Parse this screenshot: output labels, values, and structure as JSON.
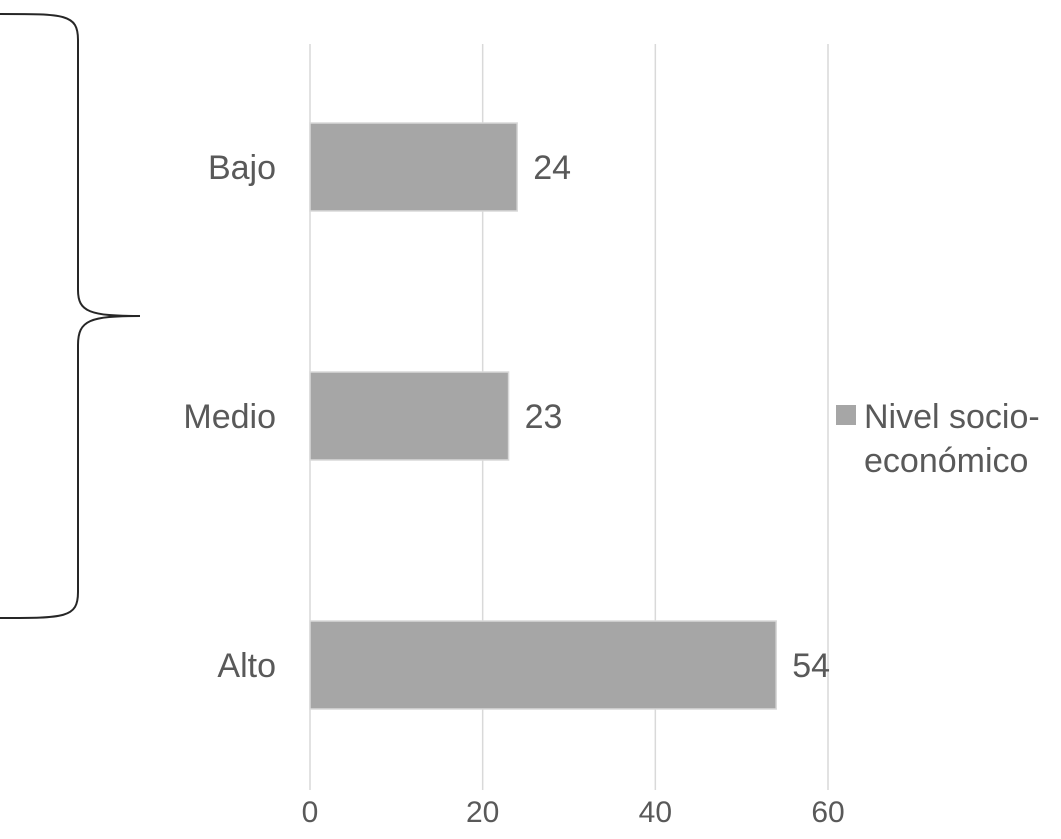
{
  "chart_data": {
    "type": "bar",
    "orientation": "horizontal",
    "categories": [
      "Bajo",
      "Medio",
      "Alto"
    ],
    "series": [
      {
        "name": "Nivel socio-económico",
        "values": [
          24,
          23,
          54
        ]
      }
    ],
    "xlim": [
      0,
      60
    ],
    "xticks": [
      0,
      20,
      40,
      60
    ],
    "grid": true,
    "legend_position": "right",
    "data_labels": true,
    "colors": {
      "bar": "#a6a6a6",
      "bar_edge": "#d9d9d9",
      "grid": "#d9d9d9",
      "text": "#595959",
      "bracket": "#262626"
    }
  },
  "legend": {
    "lines": [
      "Nivel socio-",
      "económico"
    ]
  }
}
